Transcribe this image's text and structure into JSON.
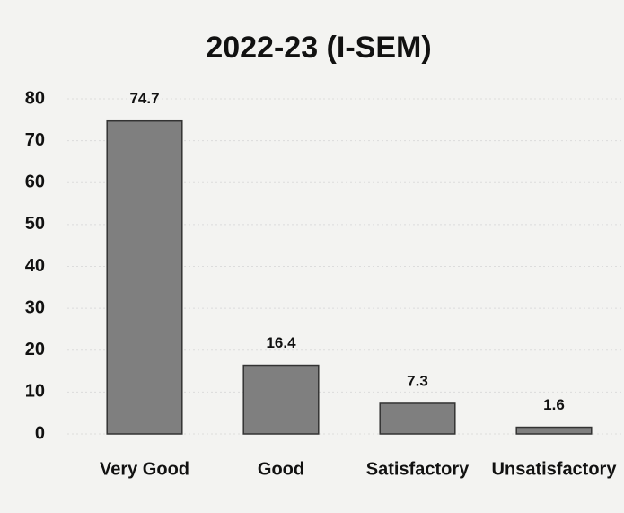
{
  "chart_data": {
    "type": "bar",
    "title": "2022-23 (I-SEM)",
    "categories": [
      "Very Good",
      "Good",
      "Satisfactory",
      "Unsatisfactory"
    ],
    "values": [
      74.7,
      16.4,
      7.3,
      1.6
    ],
    "color": "#7f7f7f",
    "ylim": [
      0,
      80
    ],
    "yticks": [
      0,
      10,
      20,
      30,
      40,
      50,
      60,
      70,
      80
    ],
    "grid": true
  }
}
